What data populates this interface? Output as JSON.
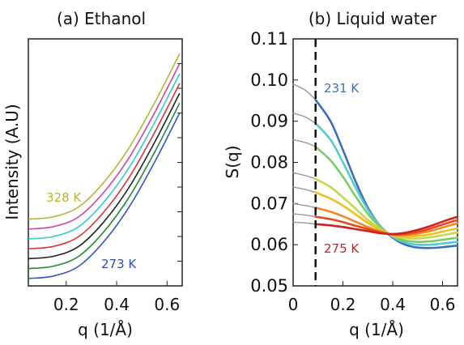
{
  "chart_data": [
    {
      "panel": "a",
      "type": "line",
      "title": "(a) Ethanol",
      "xlabel": "q (1/Å)",
      "ylabel": "Intensity (A.U)",
      "xlim": [
        0.05,
        0.66
      ],
      "ylim": [
        0,
        1
      ],
      "x_ticks": [
        "0.2",
        "0.4",
        "0.6"
      ],
      "x_tick_values": [
        0.2,
        0.4,
        0.6
      ],
      "y_tick_labels_shown": false,
      "annotations": [
        {
          "text": "328 K",
          "color": "#b5b532"
        },
        {
          "text": "273 K",
          "color": "#3050a8"
        }
      ],
      "series": [
        {
          "color": "#b5b532",
          "x": [
            0.05,
            0.15,
            0.25,
            0.35,
            0.45,
            0.55,
            0.65
          ],
          "y": [
            0.27,
            0.28,
            0.32,
            0.42,
            0.56,
            0.74,
            0.94
          ]
        },
        {
          "color": "#cc44aa",
          "x": [
            0.05,
            0.15,
            0.25,
            0.35,
            0.45,
            0.55,
            0.65
          ],
          "y": [
            0.23,
            0.24,
            0.28,
            0.38,
            0.52,
            0.7,
            0.9
          ]
        },
        {
          "color": "#33cccc",
          "x": [
            0.05,
            0.15,
            0.25,
            0.35,
            0.45,
            0.55,
            0.65
          ],
          "y": [
            0.19,
            0.2,
            0.24,
            0.34,
            0.48,
            0.66,
            0.86
          ]
        },
        {
          "color": "#dd3333",
          "x": [
            0.05,
            0.15,
            0.25,
            0.35,
            0.45,
            0.55,
            0.65
          ],
          "y": [
            0.15,
            0.16,
            0.2,
            0.3,
            0.44,
            0.62,
            0.82
          ]
        },
        {
          "color": "#222222",
          "x": [
            0.05,
            0.15,
            0.25,
            0.35,
            0.45,
            0.55,
            0.65
          ],
          "y": [
            0.11,
            0.12,
            0.16,
            0.26,
            0.4,
            0.58,
            0.78
          ]
        },
        {
          "color": "#228833",
          "x": [
            0.05,
            0.15,
            0.25,
            0.35,
            0.45,
            0.55,
            0.65
          ],
          "y": [
            0.07,
            0.08,
            0.12,
            0.22,
            0.36,
            0.54,
            0.74
          ]
        },
        {
          "color": "#3355bb",
          "x": [
            0.05,
            0.15,
            0.25,
            0.35,
            0.45,
            0.55,
            0.65
          ],
          "y": [
            0.03,
            0.04,
            0.08,
            0.18,
            0.32,
            0.5,
            0.7
          ]
        }
      ]
    },
    {
      "panel": "b",
      "type": "line",
      "title": "(b) Liquid water",
      "xlabel": "q (1/Å)",
      "ylabel": "S(q)",
      "xlim": [
        0,
        0.66
      ],
      "ylim": [
        0.05,
        0.11
      ],
      "x_ticks": [
        "0",
        "0.2",
        "0.4",
        "0.6"
      ],
      "x_tick_values": [
        0,
        0.2,
        0.4,
        0.6
      ],
      "y_ticks": [
        "0.05",
        "0.06",
        "0.07",
        "0.08",
        "0.09",
        "0.10",
        "0.11"
      ],
      "y_tick_values": [
        0.05,
        0.06,
        0.07,
        0.08,
        0.09,
        0.1,
        0.11
      ],
      "vline": {
        "x": 0.09,
        "style": "dashed"
      },
      "annotations": [
        {
          "text": "231 K",
          "color": "#3a6fc0"
        },
        {
          "text": "275 K",
          "color": "#cc2222"
        }
      ],
      "series": [
        {
          "color": "#999999",
          "x": [
            0.0,
            0.05,
            0.09
          ],
          "y": [
            0.099,
            0.0975,
            0.0952
          ]
        },
        {
          "color": "#999999",
          "x": [
            0.0,
            0.05,
            0.09
          ],
          "y": [
            0.092,
            0.091,
            0.0895
          ]
        },
        {
          "color": "#999999",
          "x": [
            0.0,
            0.05,
            0.09
          ],
          "y": [
            0.0855,
            0.0848,
            0.0838
          ]
        },
        {
          "color": "#999999",
          "x": [
            0.0,
            0.05,
            0.09
          ],
          "y": [
            0.0775,
            0.0768,
            0.076
          ]
        },
        {
          "color": "#999999",
          "x": [
            0.0,
            0.05,
            0.09
          ],
          "y": [
            0.074,
            0.0734,
            0.0727
          ]
        },
        {
          "color": "#999999",
          "x": [
            0.0,
            0.05,
            0.09
          ],
          "y": [
            0.07,
            0.0695,
            0.069
          ]
        },
        {
          "color": "#999999",
          "x": [
            0.0,
            0.05,
            0.09
          ],
          "y": [
            0.0675,
            0.0672,
            0.0668
          ]
        },
        {
          "color": "#999999",
          "x": [
            0.0,
            0.05,
            0.09
          ],
          "y": [
            0.0655,
            0.0653,
            0.065
          ]
        },
        {
          "color": "#3a6fc0",
          "x": [
            0.09,
            0.15,
            0.2,
            0.25,
            0.3,
            0.35,
            0.4,
            0.45,
            0.5,
            0.55,
            0.6,
            0.66
          ],
          "y": [
            0.0952,
            0.09,
            0.083,
            0.0755,
            0.069,
            0.0645,
            0.0617,
            0.06,
            0.0593,
            0.0592,
            0.0594,
            0.0598
          ]
        },
        {
          "color": "#55cccc",
          "x": [
            0.09,
            0.15,
            0.2,
            0.25,
            0.3,
            0.35,
            0.4,
            0.45,
            0.5,
            0.55,
            0.6,
            0.66
          ],
          "y": [
            0.0895,
            0.0855,
            0.08,
            0.074,
            0.0685,
            0.0645,
            0.0619,
            0.0605,
            0.06,
            0.06,
            0.0603,
            0.0607
          ]
        },
        {
          "color": "#7ccc66",
          "x": [
            0.09,
            0.15,
            0.2,
            0.25,
            0.3,
            0.35,
            0.4,
            0.45,
            0.5,
            0.55,
            0.6,
            0.66
          ],
          "y": [
            0.0838,
            0.0805,
            0.0765,
            0.0718,
            0.0675,
            0.0643,
            0.0621,
            0.061,
            0.0607,
            0.0608,
            0.0612,
            0.0617
          ]
        },
        {
          "color": "#c8d844",
          "x": [
            0.09,
            0.15,
            0.2,
            0.25,
            0.3,
            0.35,
            0.4,
            0.45,
            0.5,
            0.55,
            0.6,
            0.66
          ],
          "y": [
            0.076,
            0.074,
            0.0715,
            0.0688,
            0.066,
            0.0638,
            0.0622,
            0.0616,
            0.0615,
            0.0618,
            0.0623,
            0.063
          ]
        },
        {
          "color": "#f0c020",
          "x": [
            0.09,
            0.15,
            0.2,
            0.25,
            0.3,
            0.35,
            0.4,
            0.45,
            0.5,
            0.55,
            0.6,
            0.66
          ],
          "y": [
            0.0727,
            0.0712,
            0.0695,
            0.0674,
            0.0653,
            0.0636,
            0.0623,
            0.062,
            0.0621,
            0.0625,
            0.0632,
            0.064
          ]
        },
        {
          "color": "#f08a20",
          "x": [
            0.09,
            0.15,
            0.2,
            0.25,
            0.3,
            0.35,
            0.4,
            0.45,
            0.5,
            0.55,
            0.6,
            0.66
          ],
          "y": [
            0.069,
            0.068,
            0.0669,
            0.0656,
            0.0643,
            0.0632,
            0.0624,
            0.0623,
            0.0627,
            0.0633,
            0.0642,
            0.0652
          ]
        },
        {
          "color": "#e24a20",
          "x": [
            0.09,
            0.15,
            0.2,
            0.25,
            0.3,
            0.35,
            0.4,
            0.45,
            0.5,
            0.55,
            0.6,
            0.66
          ],
          "y": [
            0.0668,
            0.0662,
            0.0655,
            0.0646,
            0.0638,
            0.063,
            0.0625,
            0.0626,
            0.0631,
            0.0639,
            0.0649,
            0.066
          ]
        },
        {
          "color": "#cc2222",
          "x": [
            0.09,
            0.15,
            0.2,
            0.25,
            0.3,
            0.35,
            0.4,
            0.45,
            0.5,
            0.55,
            0.6,
            0.66
          ],
          "y": [
            0.065,
            0.0647,
            0.0643,
            0.0638,
            0.0633,
            0.0628,
            0.0626,
            0.0629,
            0.0636,
            0.0645,
            0.0656,
            0.0668
          ]
        }
      ]
    }
  ]
}
